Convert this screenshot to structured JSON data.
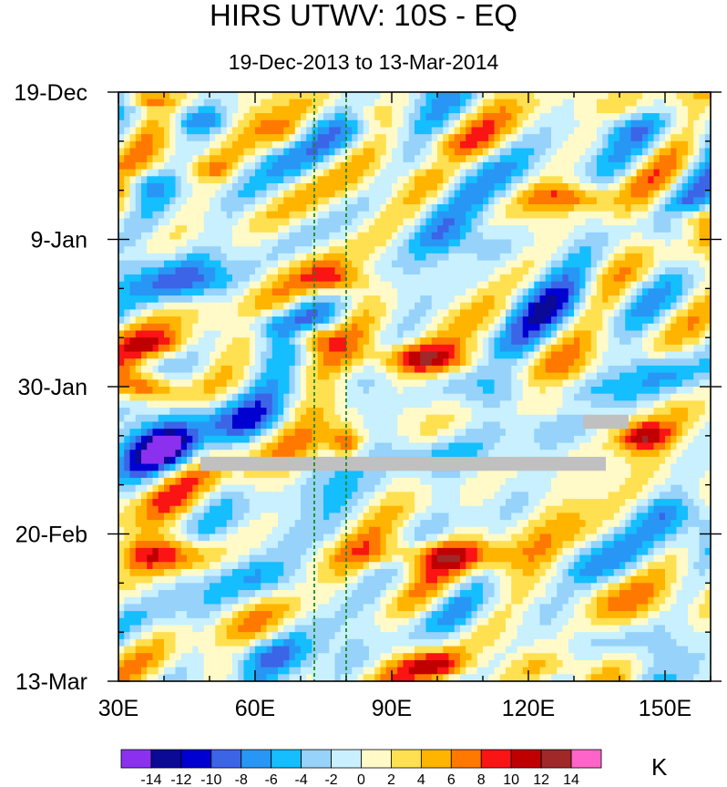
{
  "chart_data": {
    "type": "heatmap",
    "title": "HIRS UTWV: 10S - EQ",
    "subtitle": "19-Dec-2013 to 13-Mar-2014",
    "x_axis": {
      "min": 30,
      "max": 160,
      "ticks": [
        30,
        60,
        90,
        120,
        150
      ],
      "tick_labels": [
        "30E",
        "60E",
        "90E",
        "120E",
        "150E"
      ],
      "minor_step": 10
    },
    "y_axis": {
      "start": "19-Dec-2013",
      "end": "13-Mar-2014",
      "days": 84,
      "ticks": [
        0,
        21,
        42,
        63,
        84
      ],
      "tick_labels": [
        "19-Dec",
        "9-Jan",
        "30-Jan",
        "20-Feb",
        "13-Mar"
      ],
      "minor_step": 7,
      "direction": "top-to-bottom"
    },
    "colorbar": {
      "unit": "K",
      "levels": [
        -14,
        -12,
        -10,
        -8,
        -6,
        -4,
        -2,
        0,
        2,
        4,
        6,
        8,
        10,
        12,
        14
      ],
      "level_labels": [
        "-14",
        "-12",
        "-10",
        "-8",
        "-6",
        "-4",
        "-2",
        "0",
        "2",
        "4",
        "6",
        "8",
        "10",
        "12",
        "14"
      ],
      "colors": [
        "#8c30f0",
        "#0a0a96",
        "#0000d0",
        "#3c64e6",
        "#2896f5",
        "#14beff",
        "#96d2fa",
        "#c8f0ff",
        "#fffac8",
        "#ffe050",
        "#ffb400",
        "#ff7800",
        "#fa1414",
        "#c00000",
        "#a02828",
        "#ff64c8"
      ]
    },
    "reference_lines": [
      {
        "lon": 73,
        "style": "dashed",
        "color": "#1a8c1a"
      },
      {
        "lon": 80,
        "style": "dashed",
        "color": "#1a8c1a"
      }
    ],
    "missing_data": [
      {
        "lon_start": 48,
        "lon_end": 137,
        "day_start": 52,
        "day_end": 54,
        "color": "#c0c0c0"
      },
      {
        "lon_start": 132,
        "lon_end": 142,
        "day_start": 46,
        "day_end": 48,
        "color": "#c0c0c0"
      }
    ],
    "features": [
      {
        "lon": 36,
        "day": 1,
        "amp": 8,
        "sx": 5,
        "sy": 1.2
      },
      {
        "lon": 47,
        "day": 4,
        "amp": -7,
        "sx": 6,
        "sy": 2.0
      },
      {
        "lon": 50,
        "day": 11,
        "amp": 5,
        "sx": 7,
        "sy": 2.0
      },
      {
        "lon": 35,
        "day": 13,
        "amp": -6,
        "sx": 5,
        "sy": 2.0
      },
      {
        "lon": 66,
        "day": 6,
        "amp": 4,
        "sx": 5,
        "sy": 2.0
      },
      {
        "lon": 102,
        "day": 10,
        "amp": -5,
        "sx": 8,
        "sy": 2.0
      },
      {
        "lon": 128,
        "day": 15,
        "amp": 8,
        "sx": 9,
        "sy": 2.0
      },
      {
        "lon": 155,
        "day": 18,
        "amp": 6,
        "sx": 5,
        "sy": 1.5
      },
      {
        "lon": 107,
        "day": 21,
        "amp": -5,
        "sx": 12,
        "sy": 3.0
      },
      {
        "lon": 85,
        "day": 3,
        "amp": 5,
        "sx": 6,
        "sy": 2.0
      },
      {
        "lon": 140,
        "day": 5,
        "amp": -4,
        "sx": 10,
        "sy": 2.0
      },
      {
        "lon": 45,
        "day": 27,
        "amp": -7,
        "sx": 12,
        "sy": 3.0
      },
      {
        "lon": 78,
        "day": 27,
        "amp": 10,
        "sx": 7,
        "sy": 2.5
      },
      {
        "lon": 63,
        "day": 33,
        "amp": -6,
        "sx": 6,
        "sy": 2.0
      },
      {
        "lon": 72,
        "day": 35,
        "amp": 9,
        "sx": 5,
        "sy": 1.8
      },
      {
        "lon": 40,
        "day": 36,
        "amp": 6,
        "sx": 8,
        "sy": 2.0
      },
      {
        "lon": 97,
        "day": 38,
        "amp": 11,
        "sx": 13,
        "sy": 2.3
      },
      {
        "lon": 125,
        "day": 30,
        "amp": -6,
        "sx": 12,
        "sy": 4.0
      },
      {
        "lon": 36,
        "day": 42,
        "amp": 11,
        "sx": 7,
        "sy": 2.0
      },
      {
        "lon": 55,
        "day": 47,
        "amp": -5,
        "sx": 14,
        "sy": 3.0
      },
      {
        "lon": 40,
        "day": 51,
        "amp": -11,
        "sx": 8,
        "sy": 3.5
      },
      {
        "lon": 80,
        "day": 50,
        "amp": 9,
        "sx": 4,
        "sy": 2.0
      },
      {
        "lon": 145,
        "day": 49,
        "amp": 9,
        "sx": 6,
        "sy": 2.0
      },
      {
        "lon": 115,
        "day": 43,
        "amp": -6,
        "sx": 14,
        "sy": 3.0
      },
      {
        "lon": 130,
        "day": 45,
        "amp": 5,
        "sx": 12,
        "sy": 2.0
      },
      {
        "lon": 98,
        "day": 52,
        "amp": -4,
        "sx": 10,
        "sy": 2.5
      },
      {
        "lon": 40,
        "day": 66,
        "amp": 10,
        "sx": 11,
        "sy": 2.5
      },
      {
        "lon": 98,
        "day": 66,
        "amp": 9,
        "sx": 16,
        "sy": 2.2
      },
      {
        "lon": 65,
        "day": 70,
        "amp": -5,
        "sx": 10,
        "sy": 3.0
      },
      {
        "lon": 130,
        "day": 71,
        "amp": 5,
        "sx": 12,
        "sy": 3.0
      },
      {
        "lon": 150,
        "day": 60,
        "amp": -5,
        "sx": 8,
        "sy": 3.0
      },
      {
        "lon": 100,
        "day": 82,
        "amp": 10,
        "sx": 8,
        "sy": 2.2
      },
      {
        "lon": 60,
        "day": 80,
        "amp": -5,
        "sx": 10,
        "sy": 2.5
      },
      {
        "lon": 140,
        "day": 78,
        "amp": -5,
        "sx": 10,
        "sy": 3.0
      },
      {
        "lon": 125,
        "day": 82,
        "amp": 4,
        "sx": 8,
        "sy": 2.0
      },
      {
        "lon": 150,
        "day": 40,
        "amp": -4,
        "sx": 8,
        "sy": 2.5
      }
    ]
  }
}
